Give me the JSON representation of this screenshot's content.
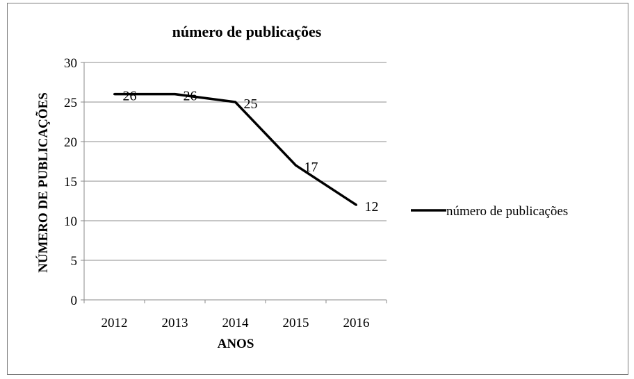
{
  "chart_data": {
    "type": "line",
    "title": "número de publicações",
    "xlabel": "ANOS",
    "ylabel": "NÚMERO DE PUBLICAÇÕES",
    "categories": [
      "2012",
      "2013",
      "2014",
      "2015",
      "2016"
    ],
    "y_ticks": [
      "0",
      "5",
      "10",
      "15",
      "20",
      "25",
      "30"
    ],
    "ylim": [
      0,
      30
    ],
    "grid": true,
    "legend_position": "right",
    "series": [
      {
        "name": "número de publicações",
        "values": [
          26,
          26,
          25,
          17,
          12
        ],
        "data_labels": [
          "26",
          "26",
          "25",
          "17",
          "12"
        ],
        "color": "#000000"
      }
    ]
  }
}
